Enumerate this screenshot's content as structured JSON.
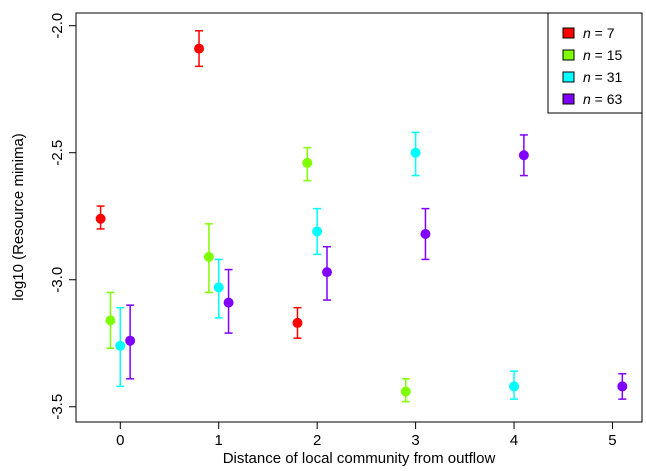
{
  "chart_data": {
    "type": "scatter",
    "xlabel": "Distance of local community from outflow",
    "ylabel": "log10 (Resource minima)",
    "xlim": [
      -0.45,
      5.3
    ],
    "ylim": [
      -3.56,
      -1.95
    ],
    "x_ticks": [
      0,
      1,
      2,
      3,
      4,
      5
    ],
    "x_tick_labels": [
      "0",
      "1",
      "2",
      "3",
      "4",
      "5"
    ],
    "y_ticks": [
      -2.0,
      -2.5,
      -3.0,
      -3.5
    ],
    "y_tick_labels": [
      "-2.0",
      "-2.5",
      "-3.0",
      "-3.5"
    ],
    "grid": false,
    "legend_position": "top-right",
    "series": [
      {
        "legend_prefix": "n",
        "legend_suffix": " = 7",
        "color": "#ff0000",
        "points": [
          {
            "x": -0.2,
            "y": -2.76,
            "lo": -2.8,
            "hi": -2.71
          },
          {
            "x": 0.8,
            "y": -2.09,
            "lo": -2.16,
            "hi": -2.02
          },
          {
            "x": 1.8,
            "y": -3.17,
            "lo": -3.23,
            "hi": -3.11
          }
        ]
      },
      {
        "legend_prefix": "n",
        "legend_suffix": " = 15",
        "color": "#80ff00",
        "points": [
          {
            "x": -0.1,
            "y": -3.16,
            "lo": -3.27,
            "hi": -3.05
          },
          {
            "x": 0.9,
            "y": -2.91,
            "lo": -3.05,
            "hi": -2.78
          },
          {
            "x": 1.9,
            "y": -2.54,
            "lo": -2.61,
            "hi": -2.48
          },
          {
            "x": 2.9,
            "y": -3.44,
            "lo": -3.48,
            "hi": -3.39
          }
        ]
      },
      {
        "legend_prefix": "n",
        "legend_suffix": " = 31",
        "color": "#00ffff",
        "points": [
          {
            "x": 0.0,
            "y": -3.26,
            "lo": -3.42,
            "hi": -3.11
          },
          {
            "x": 1.0,
            "y": -3.03,
            "lo": -3.15,
            "hi": -2.92
          },
          {
            "x": 2.0,
            "y": -2.81,
            "lo": -2.9,
            "hi": -2.72
          },
          {
            "x": 3.0,
            "y": -2.5,
            "lo": -2.59,
            "hi": -2.42
          },
          {
            "x": 4.0,
            "y": -3.42,
            "lo": -3.47,
            "hi": -3.36
          }
        ]
      },
      {
        "legend_prefix": "n",
        "legend_suffix": " = 63",
        "color": "#8000ff",
        "points": [
          {
            "x": 0.1,
            "y": -3.24,
            "lo": -3.39,
            "hi": -3.1
          },
          {
            "x": 1.1,
            "y": -3.09,
            "lo": -3.21,
            "hi": -2.96
          },
          {
            "x": 2.1,
            "y": -2.97,
            "lo": -3.08,
            "hi": -2.87
          },
          {
            "x": 3.1,
            "y": -2.82,
            "lo": -2.92,
            "hi": -2.72
          },
          {
            "x": 4.1,
            "y": -2.51,
            "lo": -2.59,
            "hi": -2.43
          },
          {
            "x": 5.1,
            "y": -3.42,
            "lo": -3.47,
            "hi": -3.37
          }
        ]
      }
    ]
  }
}
